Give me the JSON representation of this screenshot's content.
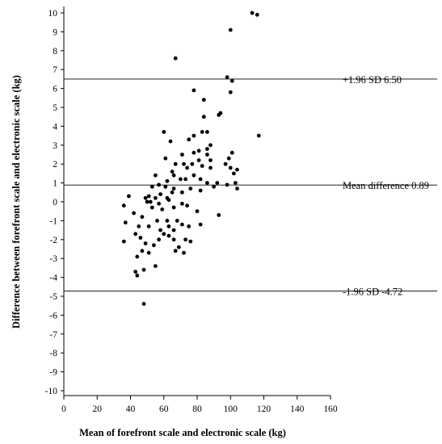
{
  "chart_data": {
    "type": "scatter",
    "title": "",
    "xlabel": "Mean of forefront scale and electronic scale (kg)",
    "ylabel": "Difference between forefront scale and electronic scale (kg)",
    "xlim": [
      0,
      160
    ],
    "ylim": [
      -10,
      10
    ],
    "x_ticks": [
      "0",
      "20",
      "40",
      "60",
      "80",
      "100",
      "120",
      "140",
      "160"
    ],
    "y_ticks": [
      "-10",
      "-9",
      "-8",
      "-7",
      "-6",
      "-5",
      "-4",
      "-3",
      "-2",
      "-1",
      "0",
      "1",
      "2",
      "3",
      "4",
      "5",
      "6",
      "7",
      "8",
      "9",
      "10"
    ],
    "grid": false,
    "reference_lines": [
      {
        "label": "+1.96 SD 6.50",
        "y": 6.5
      },
      {
        "label": "Mean difference 0.89",
        "y": 0.89
      },
      {
        "label": "-1.96 SD -4.72",
        "y": -4.72
      }
    ],
    "points": [
      [
        113,
        10.0
      ],
      [
        116,
        9.9
      ],
      [
        100,
        9.1
      ],
      [
        67,
        7.6
      ],
      [
        98,
        6.6
      ],
      [
        101,
        6.4
      ],
      [
        78,
        5.9
      ],
      [
        84,
        5.4
      ],
      [
        100,
        5.8
      ],
      [
        93,
        4.6
      ],
      [
        94,
        4.7
      ],
      [
        84,
        4.5
      ],
      [
        60,
        3.7
      ],
      [
        83,
        3.7
      ],
      [
        86,
        3.7
      ],
      [
        117,
        3.5
      ],
      [
        78,
        3.5
      ],
      [
        64,
        3.2
      ],
      [
        75,
        3.3
      ],
      [
        88,
        3.0
      ],
      [
        86,
        2.8
      ],
      [
        81,
        2.7
      ],
      [
        78,
        2.6
      ],
      [
        71,
        2.5
      ],
      [
        86,
        2.5
      ],
      [
        61,
        2.3
      ],
      [
        101,
        2.6
      ],
      [
        97,
        2.0
      ],
      [
        99,
        2.3
      ],
      [
        77,
        2.0
      ],
      [
        81,
        2.2
      ],
      [
        88,
        2.2
      ],
      [
        67,
        2.0
      ],
      [
        72,
        2.0
      ],
      [
        74,
        1.8
      ],
      [
        83,
        1.9
      ],
      [
        65,
        1.6
      ],
      [
        66,
        1.4
      ],
      [
        88,
        1.8
      ],
      [
        100,
        1.8
      ],
      [
        104,
        1.7
      ],
      [
        102,
        1.5
      ],
      [
        78,
        1.4
      ],
      [
        70,
        1.2
      ],
      [
        73,
        1.2
      ],
      [
        82,
        1.2
      ],
      [
        55,
        1.4
      ],
      [
        62,
        1.1
      ],
      [
        86,
        1.0
      ],
      [
        92,
        1.0
      ],
      [
        103,
        1.0
      ],
      [
        57,
        0.9
      ],
      [
        90,
        0.8
      ],
      [
        98,
        0.9
      ],
      [
        104,
        0.7
      ],
      [
        53,
        0.8
      ],
      [
        61,
        0.8
      ],
      [
        66,
        0.7
      ],
      [
        76,
        0.7
      ],
      [
        82,
        0.6
      ],
      [
        71,
        0.5
      ],
      [
        58,
        0.4
      ],
      [
        65,
        0.5
      ],
      [
        39,
        0.3
      ],
      [
        49,
        0.2
      ],
      [
        51,
        0.3
      ],
      [
        55,
        0.2
      ],
      [
        62,
        0.2
      ],
      [
        50,
        0.0
      ],
      [
        52,
        0.0
      ],
      [
        57,
        -0.1
      ],
      [
        63,
        0.1
      ],
      [
        71,
        -0.1
      ],
      [
        74,
        -0.2
      ],
      [
        36,
        -0.2
      ],
      [
        53,
        -0.3
      ],
      [
        59,
        -0.4
      ],
      [
        66,
        -0.3
      ],
      [
        80,
        -0.5
      ],
      [
        93,
        -0.7
      ],
      [
        42,
        -0.6
      ],
      [
        47,
        -0.8
      ],
      [
        56,
        -1.0
      ],
      [
        62,
        -1.0
      ],
      [
        68,
        -1.0
      ],
      [
        37,
        -1.1
      ],
      [
        45,
        -1.3
      ],
      [
        51,
        -1.3
      ],
      [
        63,
        -1.3
      ],
      [
        71,
        -1.2
      ],
      [
        75,
        -1.3
      ],
      [
        82,
        -1.2
      ],
      [
        58,
        -1.5
      ],
      [
        66,
        -1.5
      ],
      [
        43,
        -1.7
      ],
      [
        60,
        -1.7
      ],
      [
        63,
        -1.8
      ],
      [
        46,
        -1.9
      ],
      [
        57,
        -2.0
      ],
      [
        66,
        -2.0
      ],
      [
        73,
        -2.0
      ],
      [
        76,
        -2.1
      ],
      [
        36,
        -2.1
      ],
      [
        49,
        -2.2
      ],
      [
        54,
        -2.3
      ],
      [
        69,
        -2.4
      ],
      [
        47,
        -2.6
      ],
      [
        51,
        -2.7
      ],
      [
        67,
        -2.6
      ],
      [
        72,
        -2.7
      ],
      [
        44,
        -2.9
      ],
      [
        55,
        -3.4
      ],
      [
        48,
        -3.6
      ],
      [
        43,
        -3.7
      ],
      [
        44,
        -3.9
      ],
      [
        48,
        -5.4
      ]
    ]
  }
}
